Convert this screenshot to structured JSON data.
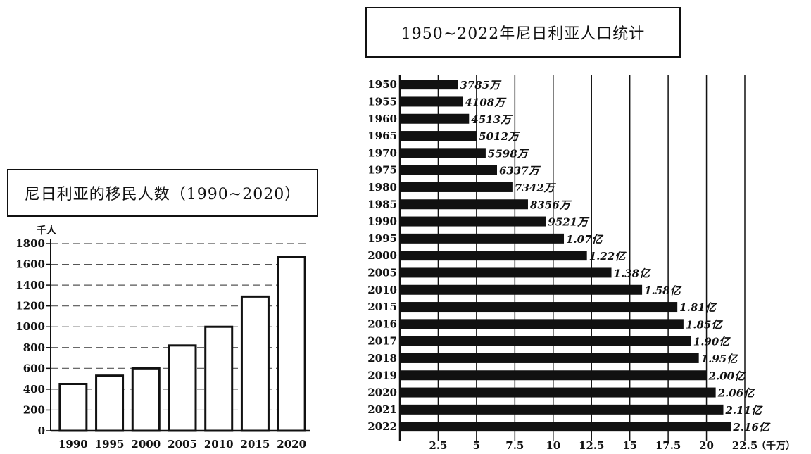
{
  "chart_data": [
    {
      "type": "bar",
      "title": "尼日利亚的移民人数（1990~2020）",
      "ylabel": "千人",
      "xlabel": "",
      "ylim": [
        0,
        1800
      ],
      "yticks": [
        0,
        200,
        400,
        600,
        800,
        1000,
        1200,
        1400,
        1600,
        1800
      ],
      "grid": true,
      "categories": [
        "1990",
        "1995",
        "2000",
        "2005",
        "2010",
        "2015",
        "2020"
      ],
      "values": [
        450,
        530,
        600,
        820,
        1000,
        1290,
        1670
      ]
    },
    {
      "type": "bar",
      "orientation": "horizontal",
      "title": "1950~2022年尼日利亚人口统计",
      "xlabel": "（千万）",
      "xticks": [
        "2.5",
        "5",
        "7.5",
        "10",
        "12.5",
        "15",
        "17.5",
        "20",
        "22.5"
      ],
      "xlim": [
        0,
        22.5
      ],
      "grid": true,
      "categories": [
        "1950",
        "1955",
        "1960",
        "1965",
        "1970",
        "1975",
        "1980",
        "1985",
        "1990",
        "1995",
        "2000",
        "2005",
        "2010",
        "2015",
        "2016",
        "2017",
        "2018",
        "2019",
        "2020",
        "2021",
        "2022"
      ],
      "values": [
        3.785,
        4.108,
        4.513,
        5.012,
        5.598,
        6.337,
        7.342,
        8.356,
        9.521,
        10.7,
        12.2,
        13.8,
        15.8,
        18.1,
        18.5,
        19.0,
        19.5,
        20.0,
        20.6,
        21.1,
        21.6
      ],
      "data_labels": [
        "3785万",
        "4108万",
        "4513万",
        "5012万",
        "5598万",
        "6337万",
        "7342万",
        "8356万",
        "9521万",
        "1.07亿",
        "1.22亿",
        "1.38亿",
        "1.58亿",
        "1.81亿",
        "1.85亿",
        "1.90亿",
        "1.95亿",
        "2.00亿",
        "2.06亿",
        "2.11亿",
        "2.16亿"
      ]
    }
  ]
}
